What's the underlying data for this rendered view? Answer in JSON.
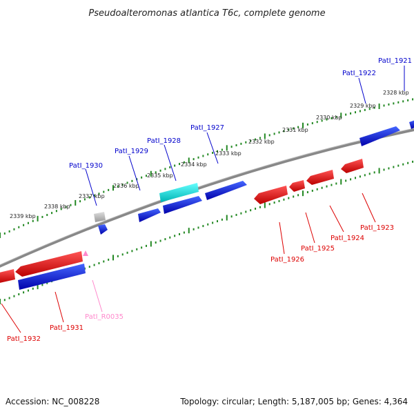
{
  "title": "Pseudoalteromonas atlantica T6c, complete genome",
  "accession": "Accession: NC_008228",
  "summary": "Topology: circular; Length: 5,187,005 bp; Genes: 4,364",
  "colors": {
    "forward_gene": "#0000cc",
    "reverse_gene": "#dd0000",
    "rna": "#ff88cc",
    "pseudogene": "#aaaaaa",
    "highlight": "#00dddd",
    "tick": "#228822",
    "backbone": "#888888"
  },
  "kbp_labels": [
    "2328 kbp",
    "2329 kbp",
    "2330 kbp",
    "2331 kbp",
    "2332 kbp",
    "2333 kbp",
    "2334 kbp",
    "2335 kbp",
    "2336 kbp",
    "2337 kbp",
    "2338 kbp",
    "2339 kbp"
  ],
  "genes_forward": [
    {
      "name": "PatI_1921",
      "color": "#0000cc"
    },
    {
      "name": "PatI_1922",
      "color": "#0000cc"
    },
    {
      "name": "PatI_1927",
      "color": "#0000cc"
    },
    {
      "name": "PatI_1928",
      "color": "#0000cc"
    },
    {
      "name": "PatI_1929",
      "color": "#0000cc"
    },
    {
      "name": "PatI_1930",
      "color": "#0000cc"
    }
  ],
  "genes_reverse": [
    {
      "name": "PatI_1923",
      "color": "#dd0000"
    },
    {
      "name": "PatI_1924",
      "color": "#dd0000"
    },
    {
      "name": "PatI_1925",
      "color": "#dd0000"
    },
    {
      "name": "PatI_1926",
      "color": "#dd0000"
    },
    {
      "name": "PatI_1931",
      "color": "#dd0000"
    },
    {
      "name": "PatI_1932",
      "color": "#dd0000"
    },
    {
      "name": "PatI_R0035",
      "color": "#ff88cc"
    }
  ]
}
